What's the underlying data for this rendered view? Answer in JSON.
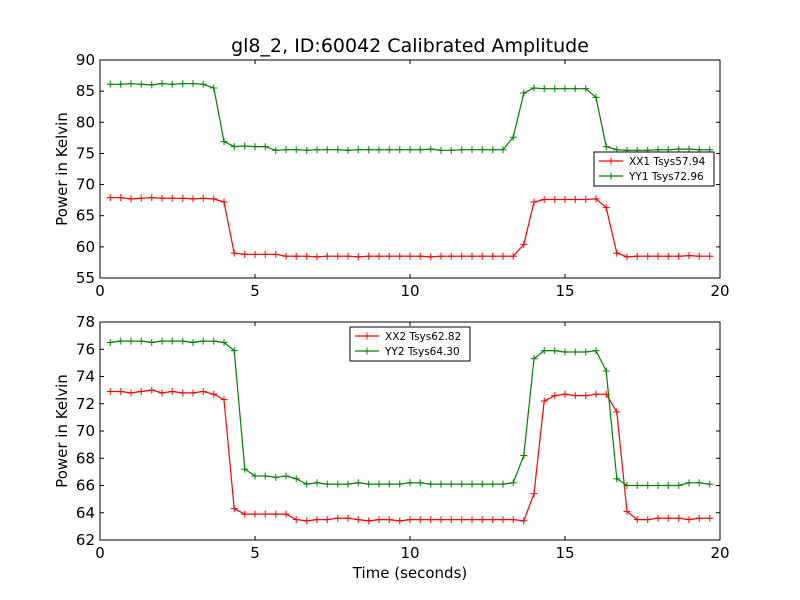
{
  "title": "gl8_2, ID:60042 Calibrated Amplitude",
  "xlabel": "Time (seconds)",
  "colors": {
    "red": "#ff0000",
    "green": "#008000",
    "axis": "#000000",
    "background": "#ffffff"
  },
  "chart_data": [
    {
      "type": "line",
      "title": "gl8_2, ID:60042 Calibrated Amplitude",
      "xlabel": "",
      "ylabel": "Power in Kelvin",
      "xlim": [
        0,
        20
      ],
      "ylim": [
        55,
        90
      ],
      "xticks": [
        "0",
        "5",
        "10",
        "15",
        "20"
      ],
      "yticks": [
        "55",
        "60",
        "65",
        "70",
        "75",
        "80",
        "85",
        "90"
      ],
      "legend_position": "center-right",
      "x": [
        0.33,
        0.67,
        1.0,
        1.33,
        1.67,
        2.0,
        2.33,
        2.67,
        3.0,
        3.33,
        3.67,
        4.0,
        4.33,
        4.67,
        5.0,
        5.33,
        5.67,
        6.0,
        6.33,
        6.67,
        7.0,
        7.33,
        7.67,
        8.0,
        8.33,
        8.67,
        9.0,
        9.33,
        9.67,
        10.0,
        10.33,
        10.67,
        11.0,
        11.33,
        11.67,
        12.0,
        12.33,
        12.67,
        13.0,
        13.33,
        13.67,
        14.0,
        14.33,
        14.67,
        15.0,
        15.33,
        15.67,
        16.0,
        16.33,
        16.67,
        17.0,
        17.33,
        17.67,
        18.0,
        18.33,
        18.67,
        19.0,
        19.33,
        19.67
      ],
      "series": [
        {
          "name": "XX1 Tsys57.94",
          "color": "#ff0000",
          "values": [
            67.9,
            67.9,
            67.7,
            67.8,
            67.9,
            67.8,
            67.8,
            67.8,
            67.7,
            67.8,
            67.7,
            67.2,
            59.0,
            58.8,
            58.8,
            58.8,
            58.8,
            58.5,
            58.5,
            58.5,
            58.4,
            58.5,
            58.5,
            58.5,
            58.4,
            58.5,
            58.5,
            58.5,
            58.5,
            58.5,
            58.5,
            58.4,
            58.5,
            58.5,
            58.5,
            58.5,
            58.5,
            58.5,
            58.5,
            58.5,
            60.4,
            67.2,
            67.6,
            67.6,
            67.6,
            67.6,
            67.6,
            67.7,
            66.3,
            59.0,
            58.4,
            58.5,
            58.5,
            58.5,
            58.5,
            58.5,
            58.6,
            58.5,
            58.5
          ]
        },
        {
          "name": "YY1 Tsys72.96",
          "color": "#008000",
          "values": [
            86.1,
            86.1,
            86.2,
            86.1,
            86.0,
            86.2,
            86.1,
            86.2,
            86.2,
            86.1,
            85.5,
            76.9,
            76.1,
            76.2,
            76.1,
            76.1,
            75.5,
            75.6,
            75.6,
            75.5,
            75.6,
            75.6,
            75.6,
            75.5,
            75.6,
            75.6,
            75.6,
            75.6,
            75.6,
            75.6,
            75.6,
            75.7,
            75.5,
            75.5,
            75.6,
            75.6,
            75.6,
            75.6,
            75.6,
            77.6,
            84.7,
            85.5,
            85.4,
            85.4,
            85.4,
            85.4,
            85.4,
            84.0,
            76.1,
            75.6,
            75.5,
            75.5,
            75.5,
            75.6,
            75.6,
            75.7,
            75.7,
            75.6,
            75.6
          ]
        }
      ]
    },
    {
      "type": "line",
      "title": "",
      "xlabel": "Time (seconds)",
      "ylabel": "Power in Kelvin",
      "xlim": [
        0,
        20
      ],
      "ylim": [
        62,
        78
      ],
      "xticks": [
        "0",
        "5",
        "10",
        "15",
        "20"
      ],
      "yticks": [
        "62",
        "64",
        "66",
        "68",
        "70",
        "72",
        "74",
        "76",
        "78"
      ],
      "legend_position": "upper-center",
      "x": [
        0.33,
        0.67,
        1.0,
        1.33,
        1.67,
        2.0,
        2.33,
        2.67,
        3.0,
        3.33,
        3.67,
        4.0,
        4.33,
        4.67,
        5.0,
        5.33,
        5.67,
        6.0,
        6.33,
        6.67,
        7.0,
        7.33,
        7.67,
        8.0,
        8.33,
        8.67,
        9.0,
        9.33,
        9.67,
        10.0,
        10.33,
        10.67,
        11.0,
        11.33,
        11.67,
        12.0,
        12.33,
        12.67,
        13.0,
        13.33,
        13.67,
        14.0,
        14.33,
        14.67,
        15.0,
        15.33,
        15.67,
        16.0,
        16.33,
        16.67,
        17.0,
        17.33,
        17.67,
        18.0,
        18.33,
        18.67,
        19.0,
        19.33,
        19.67
      ],
      "series": [
        {
          "name": "XX2 Tsys62.82",
          "color": "#ff0000",
          "values": [
            72.9,
            72.9,
            72.8,
            72.9,
            73.0,
            72.8,
            72.9,
            72.8,
            72.8,
            72.9,
            72.7,
            72.3,
            64.3,
            63.9,
            63.9,
            63.9,
            63.9,
            63.9,
            63.5,
            63.4,
            63.5,
            63.5,
            63.6,
            63.6,
            63.5,
            63.4,
            63.5,
            63.5,
            63.4,
            63.5,
            63.5,
            63.5,
            63.5,
            63.5,
            63.5,
            63.5,
            63.5,
            63.5,
            63.5,
            63.5,
            63.4,
            65.4,
            72.2,
            72.6,
            72.7,
            72.6,
            72.6,
            72.7,
            72.7,
            71.4,
            64.1,
            63.5,
            63.5,
            63.6,
            63.6,
            63.6,
            63.5,
            63.6,
            63.6
          ]
        },
        {
          "name": "YY2 Tsys64.30",
          "color": "#008000",
          "values": [
            76.5,
            76.6,
            76.6,
            76.6,
            76.5,
            76.6,
            76.6,
            76.6,
            76.5,
            76.6,
            76.6,
            76.5,
            75.9,
            67.2,
            66.7,
            66.7,
            66.6,
            66.7,
            66.5,
            66.1,
            66.2,
            66.1,
            66.1,
            66.1,
            66.2,
            66.1,
            66.1,
            66.1,
            66.1,
            66.2,
            66.2,
            66.1,
            66.1,
            66.1,
            66.1,
            66.1,
            66.1,
            66.1,
            66.1,
            66.2,
            68.2,
            75.3,
            75.9,
            75.9,
            75.8,
            75.8,
            75.8,
            75.9,
            74.4,
            66.5,
            66.0,
            66.0,
            66.0,
            66.0,
            66.0,
            66.0,
            66.2,
            66.2,
            66.1
          ]
        }
      ]
    }
  ]
}
